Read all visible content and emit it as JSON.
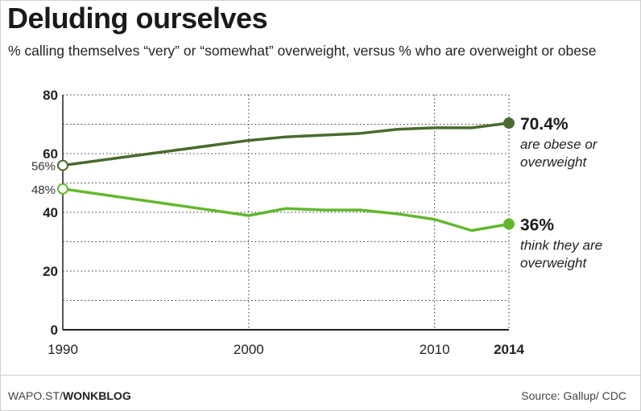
{
  "title": "Deluding ourselves",
  "subtitle": "% calling themselves “very” or “somewhat” overweight, versus % who are overweight or obese",
  "footer": {
    "source_prefix": "WAPO.ST/",
    "source_brand": "WONKBLOG",
    "credit": "Source: Gallup/ CDC"
  },
  "colors": {
    "obese_series": "#4a6a2e",
    "think_series": "#62b72f",
    "grid": "#333333"
  },
  "chart_data": {
    "type": "line",
    "xlim": [
      1990,
      2014
    ],
    "ylim": [
      0,
      80
    ],
    "x_ticks": [
      "1990",
      "2000",
      "2010",
      "2014"
    ],
    "x_tick_values": [
      1990,
      2000,
      2010,
      2014
    ],
    "y_ticks": [
      "80",
      "60",
      "40",
      "20",
      "0"
    ],
    "y_tick_values": [
      80,
      60,
      40,
      20,
      0
    ],
    "grid": true,
    "series": [
      {
        "key": "obese",
        "x": [
          1990,
          2000,
          2002,
          2006,
          2008,
          2010,
          2012,
          2014
        ],
        "values": [
          56,
          64.5,
          65.7,
          66.9,
          68.3,
          68.8,
          68.8,
          70.4
        ],
        "start_label": "56%",
        "end_value_label": "70.4%",
        "end_text": [
          "are obese or",
          "overweight"
        ]
      },
      {
        "key": "think",
        "x": [
          1990,
          2000,
          2002,
          2004,
          2006,
          2008,
          2010,
          2012,
          2014
        ],
        "values": [
          48,
          38.9,
          41.3,
          40.8,
          40.8,
          39.5,
          37.6,
          33.8,
          36
        ],
        "start_label": "48%",
        "end_value_label": "36%",
        "end_text": [
          "think they are",
          "overweight"
        ]
      }
    ]
  }
}
